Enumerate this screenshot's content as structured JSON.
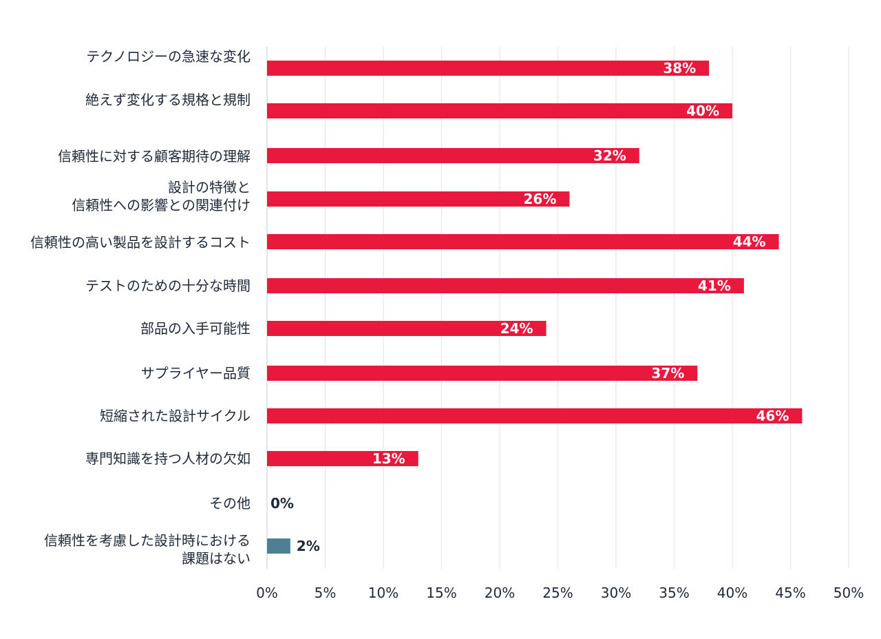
{
  "chart_data": {
    "type": "bar",
    "orientation": "horizontal",
    "categories": [
      [
        "テクノロジーの急速な変化"
      ],
      [
        "絶えず変化する規格と規制"
      ],
      [
        "信頼性に対する顧客期待の理解"
      ],
      [
        "設計の特徴と",
        "信頼性への影響との関連付け"
      ],
      [
        "信頼性の高い製品を設計するコスト"
      ],
      [
        "テストのための十分な時間"
      ],
      [
        "部品の入手可能性"
      ],
      [
        "サプライヤー品質"
      ],
      [
        "短縮された設計サイクル"
      ],
      [
        "専門知識を持つ人材の欠如"
      ],
      [
        "その他"
      ],
      [
        "信頼性を考慮した設計時における",
        "課題はない"
      ]
    ],
    "values": [
      38,
      40,
      32,
      26,
      44,
      41,
      24,
      37,
      46,
      13,
      0,
      2
    ],
    "value_labels": [
      "38%",
      "40%",
      "32%",
      "26%",
      "44%",
      "41%",
      "24%",
      "37%",
      "46%",
      "13%",
      "0%",
      "2%"
    ],
    "bar_colors": [
      "#e8193c",
      "#e8193c",
      "#e8193c",
      "#e8193c",
      "#e8193c",
      "#e8193c",
      "#e8193c",
      "#e8193c",
      "#e8193c",
      "#e8193c",
      "#e8193c",
      "#4f7f93"
    ],
    "x_ticks": [
      "0%",
      "5%",
      "10%",
      "15%",
      "20%",
      "25%",
      "30%",
      "35%",
      "40%",
      "45%",
      "50%"
    ],
    "xlim": [
      0,
      50
    ],
    "grid": "vertical",
    "gridline_color": "#e5e7eb",
    "title": "",
    "xlabel": "",
    "ylabel": ""
  }
}
